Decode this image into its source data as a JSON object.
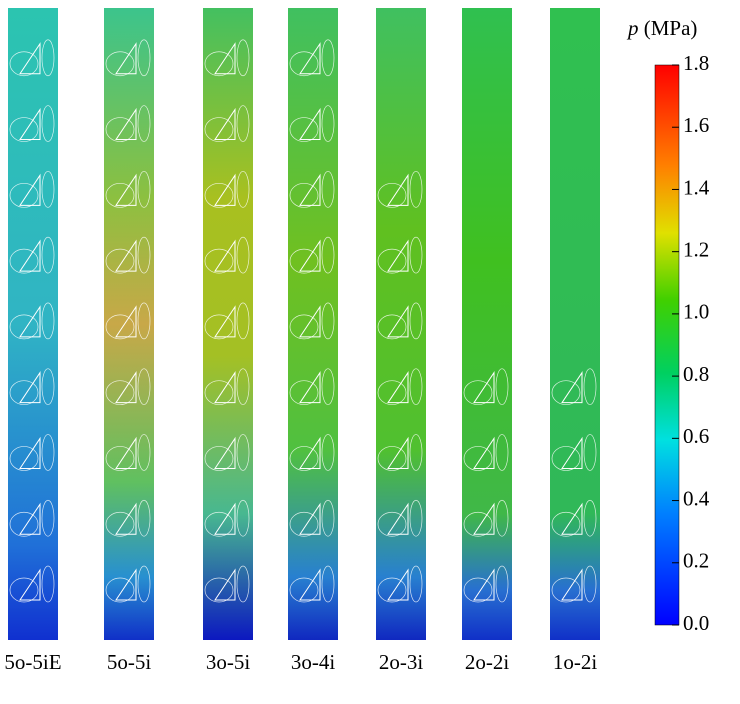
{
  "colorbar": {
    "variable": "p",
    "unit": "(MPa)",
    "range": [
      0,
      1.8
    ],
    "ticks": [
      {
        "value": 0,
        "label": "0.0"
      },
      0.2,
      0.4,
      0.6,
      0.8,
      {
        "value": 1,
        "label": "1.0"
      },
      1.2,
      1.4,
      1.6,
      1.8
    ]
  },
  "panels": [
    {
      "label": "5o-5iE"
    },
    {
      "label": "5o-5i"
    },
    {
      "label": "3o-5i"
    },
    {
      "label": "3o-4i"
    },
    {
      "label": "2o-3i"
    },
    {
      "label": "2o-2i"
    },
    {
      "label": "1o-2i"
    }
  ]
}
